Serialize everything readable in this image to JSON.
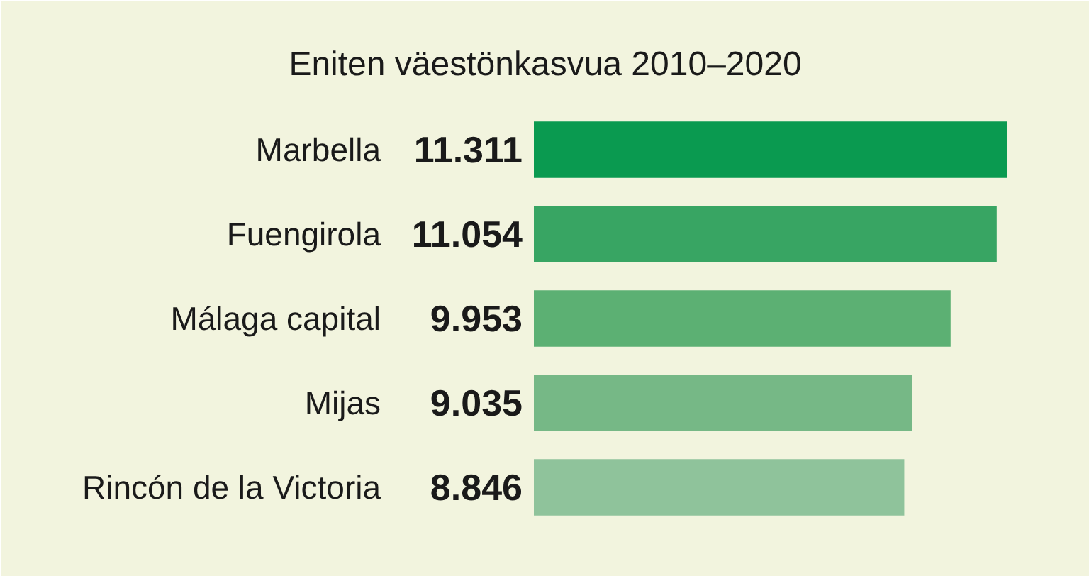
{
  "chart_data": {
    "type": "bar",
    "orientation": "horizontal",
    "title": "Eniten väestönkasvua 2010–2020",
    "categories": [
      "Marbella",
      "Fuengirola",
      "Málaga capital",
      "Mijas",
      "Rincón de la Victoria"
    ],
    "values": [
      11311,
      11054,
      9953,
      9035,
      8846
    ],
    "value_labels": [
      "11.311",
      "11.054",
      "9.953",
      "9.035",
      "8.846"
    ],
    "colors": [
      "#0a9a50",
      "#38a563",
      "#5cb073",
      "#76b886",
      "#8fc39b"
    ],
    "xlim": [
      0,
      11311
    ]
  }
}
